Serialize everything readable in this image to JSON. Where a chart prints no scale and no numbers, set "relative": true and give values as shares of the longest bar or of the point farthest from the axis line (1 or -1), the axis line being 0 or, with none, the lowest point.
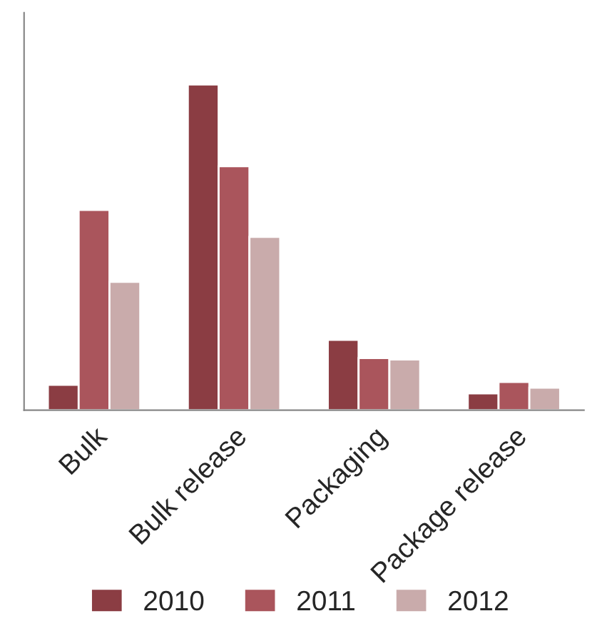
{
  "chart_data": {
    "type": "bar",
    "relative": true,
    "categories": [
      "Bulk",
      "Bulk release",
      "Packaging",
      "Package release"
    ],
    "series": [
      {
        "name": "2010",
        "color": "#8b3d43",
        "values": [
          0.078,
          1,
          0.216,
          0.052
        ]
      },
      {
        "name": "2011",
        "color": "#aa555c",
        "values": [
          0.615,
          0.749,
          0.16,
          0.087
        ]
      },
      {
        "name": "2012",
        "color": "#c9abab",
        "values": [
          0.394,
          0.532,
          0.156,
          0.069
        ]
      }
    ],
    "legend": "bottom",
    "grid": false
  }
}
